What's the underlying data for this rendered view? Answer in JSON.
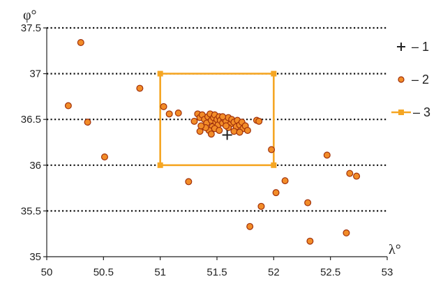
{
  "chart_data": {
    "type": "scatter",
    "xlabel": "λ°",
    "ylabel": "φ°",
    "xlim": [
      50,
      53
    ],
    "ylim": [
      35,
      37.5
    ],
    "x_ticks": [
      "50",
      "50.5",
      "51",
      "51.5",
      "52",
      "52.5",
      "53"
    ],
    "y_ticks": [
      "35",
      "35.5",
      "36",
      "36.5",
      "37",
      "37.5"
    ],
    "x_tick_values": [
      50,
      50.5,
      51,
      51.5,
      52,
      52.5,
      53
    ],
    "y_tick_values": [
      35,
      35.5,
      36,
      36.5,
      37,
      37.5
    ],
    "grid": "horizontal dotted at y ticks",
    "legend_position": "right",
    "colors": {
      "point_fill": "#f28c28",
      "point_stroke": "#a0300a",
      "rectangle": "#f5a623",
      "cross": "#222222"
    },
    "series": [
      {
        "name": "1",
        "marker": "cross",
        "points": [
          [
            51.59,
            36.33
          ]
        ]
      },
      {
        "name": "2",
        "marker": "circle",
        "points": [
          [
            50.3,
            37.34
          ],
          [
            50.19,
            36.65
          ],
          [
            50.36,
            36.47
          ],
          [
            50.51,
            36.09
          ],
          [
            50.82,
            36.84
          ],
          [
            51.03,
            36.64
          ],
          [
            51.08,
            36.56
          ],
          [
            51.16,
            36.57
          ],
          [
            51.25,
            35.82
          ],
          [
            51.98,
            36.17
          ],
          [
            52.47,
            36.11
          ],
          [
            52.67,
            35.91
          ],
          [
            52.73,
            35.88
          ],
          [
            52.1,
            35.83
          ],
          [
            52.02,
            35.7
          ],
          [
            51.89,
            35.55
          ],
          [
            52.3,
            35.59
          ],
          [
            51.79,
            35.33
          ],
          [
            52.32,
            35.17
          ],
          [
            52.64,
            35.26
          ],
          [
            51.85,
            36.49
          ],
          [
            51.87,
            36.48
          ],
          [
            51.3,
            36.48
          ],
          [
            51.33,
            36.56
          ],
          [
            51.35,
            36.52
          ],
          [
            51.37,
            36.55
          ],
          [
            51.39,
            36.5
          ],
          [
            51.41,
            36.46
          ],
          [
            51.42,
            36.53
          ],
          [
            51.44,
            36.56
          ],
          [
            51.45,
            36.49
          ],
          [
            51.46,
            36.42
          ],
          [
            51.47,
            36.52
          ],
          [
            51.48,
            36.55
          ],
          [
            51.49,
            36.47
          ],
          [
            51.5,
            36.5
          ],
          [
            51.51,
            36.44
          ],
          [
            51.52,
            36.53
          ],
          [
            51.53,
            36.49
          ],
          [
            51.55,
            36.46
          ],
          [
            51.56,
            36.51
          ],
          [
            51.58,
            36.48
          ],
          [
            51.6,
            36.52
          ],
          [
            51.62,
            36.45
          ],
          [
            51.63,
            36.5
          ],
          [
            51.65,
            36.47
          ],
          [
            51.67,
            36.42
          ],
          [
            51.68,
            36.49
          ],
          [
            51.7,
            36.44
          ],
          [
            51.72,
            36.47
          ],
          [
            51.73,
            36.4
          ],
          [
            51.75,
            36.43
          ],
          [
            51.77,
            36.38
          ],
          [
            51.65,
            36.37
          ],
          [
            51.6,
            36.41
          ],
          [
            51.43,
            36.38
          ],
          [
            51.45,
            36.34
          ],
          [
            51.35,
            36.37
          ],
          [
            51.4,
            36.41
          ],
          [
            51.55,
            36.53
          ],
          [
            51.48,
            36.4
          ],
          [
            51.7,
            36.36
          ],
          [
            51.58,
            36.43
          ],
          [
            51.36,
            36.43
          ],
          [
            51.52,
            36.38
          ]
        ]
      },
      {
        "name": "3",
        "marker": "square-line",
        "rectangle": {
          "x": [
            51,
            52
          ],
          "y": [
            36,
            37
          ]
        }
      }
    ]
  }
}
